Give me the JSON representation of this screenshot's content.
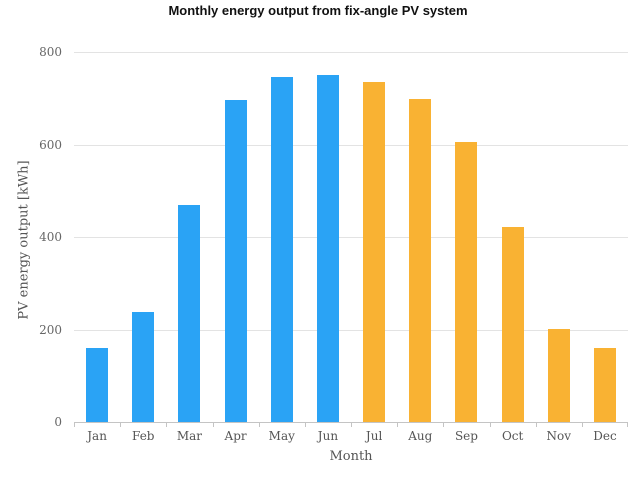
{
  "chart_data": {
    "type": "bar",
    "title": "Monthly energy output from fix-angle PV system",
    "categories": [
      "Jan",
      "Feb",
      "Mar",
      "Apr",
      "May",
      "Jun",
      "Jul",
      "Aug",
      "Sep",
      "Oct",
      "Nov",
      "Dec"
    ],
    "values": [
      160,
      238,
      470,
      697,
      745,
      750,
      735,
      698,
      605,
      422,
      202,
      160
    ],
    "bar_colors": [
      "#2aa3f5",
      "#2aa3f5",
      "#2aa3f5",
      "#2aa3f5",
      "#2aa3f5",
      "#2aa3f5",
      "#f9b233",
      "#f9b233",
      "#f9b233",
      "#f9b233",
      "#f9b233",
      "#f9b233"
    ],
    "series_colors": {
      "jan_to_jun_blue": "#2aa3f5",
      "jul_to_dec_amber": "#f9b233"
    },
    "xlabel": "Month",
    "ylabel": "PV energy output [kWh]",
    "ylim": [
      0,
      800
    ],
    "yticks": [
      0,
      200,
      400,
      600,
      800
    ],
    "grid": true,
    "legend": "none",
    "background_color": "#ffffff",
    "grid_color": "#e3e3e3",
    "axis_color": "#c4c4c4",
    "tick_label_color": "#666666",
    "title_color": "#111111"
  }
}
